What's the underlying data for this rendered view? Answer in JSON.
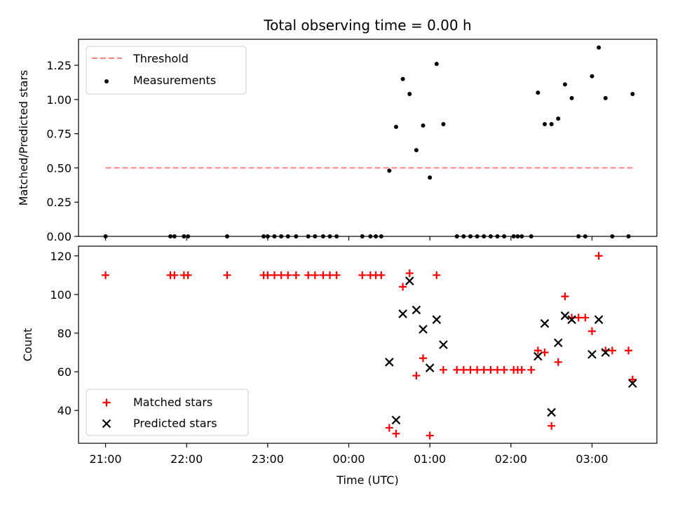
{
  "chart_data": [
    {
      "type": "line+scatter",
      "title": "Total observing time = 0.00 h",
      "xlabel": "",
      "ylabel": "Matched/Predicted stars",
      "ylim": [
        0,
        1.44
      ],
      "yticks": [
        0.0,
        0.25,
        0.5,
        0.75,
        1.0,
        1.25
      ],
      "ytick_labels": [
        "0.00",
        "0.25",
        "0.50",
        "0.75",
        "1.00",
        "1.25"
      ],
      "xlim": [
        "20:40",
        "03:48"
      ],
      "grid": false,
      "legend_position": "upper-left",
      "threshold": {
        "name": "Threshold",
        "color": "#ff7f7f",
        "style": "dashed",
        "x": [
          "21:00",
          "03:30"
        ],
        "y": [
          0.5,
          0.5
        ]
      },
      "series": [
        {
          "name": "Measurements",
          "color": "#000000",
          "marker": "dot",
          "points": [
            [
              "21:00",
              0
            ],
            [
              "21:48",
              0
            ],
            [
              "21:51",
              0
            ],
            [
              "21:58",
              0
            ],
            [
              "22:01",
              0
            ],
            [
              "22:30",
              0
            ],
            [
              "22:57",
              0
            ],
            [
              "23:00",
              0
            ],
            [
              "23:05",
              0
            ],
            [
              "23:10",
              0
            ],
            [
              "23:15",
              0
            ],
            [
              "23:21",
              0
            ],
            [
              "23:30",
              0
            ],
            [
              "23:35",
              0
            ],
            [
              "23:41",
              0
            ],
            [
              "23:46",
              0
            ],
            [
              "23:51",
              0
            ],
            [
              "00:10",
              0
            ],
            [
              "00:16",
              0
            ],
            [
              "00:20",
              0
            ],
            [
              "00:24",
              0
            ],
            [
              "00:30",
              0.48
            ],
            [
              "00:35",
              0.8
            ],
            [
              "00:40",
              1.15
            ],
            [
              "00:45",
              1.04
            ],
            [
              "00:50",
              0.63
            ],
            [
              "00:55",
              0.81
            ],
            [
              "01:00",
              0.43
            ],
            [
              "01:05",
              1.26
            ],
            [
              "01:10",
              0.82
            ],
            [
              "01:20",
              0
            ],
            [
              "01:25",
              0
            ],
            [
              "01:30",
              0
            ],
            [
              "01:35",
              0
            ],
            [
              "01:40",
              0
            ],
            [
              "01:45",
              0
            ],
            [
              "01:50",
              0
            ],
            [
              "01:55",
              0
            ],
            [
              "02:02",
              0
            ],
            [
              "02:05",
              0
            ],
            [
              "02:08",
              0
            ],
            [
              "02:15",
              0
            ],
            [
              "02:20",
              1.05
            ],
            [
              "02:25",
              0.82
            ],
            [
              "02:30",
              0.82
            ],
            [
              "02:35",
              0.86
            ],
            [
              "02:40",
              1.11
            ],
            [
              "02:45",
              1.01
            ],
            [
              "02:50",
              0
            ],
            [
              "02:55",
              0
            ],
            [
              "03:00",
              1.17
            ],
            [
              "03:05",
              1.38
            ],
            [
              "03:10",
              1.01
            ],
            [
              "03:15",
              0
            ],
            [
              "03:27",
              0
            ],
            [
              "03:30",
              1.04
            ]
          ]
        }
      ]
    },
    {
      "type": "scatter",
      "title": "",
      "xlabel": "Time (UTC)",
      "ylabel": "Count",
      "ylim": [
        23,
        125
      ],
      "yticks": [
        40,
        60,
        80,
        100,
        120
      ],
      "ytick_labels": [
        "40",
        "60",
        "80",
        "100",
        "120"
      ],
      "xlim": [
        "20:40",
        "03:48"
      ],
      "xticks": [
        "21:00",
        "22:00",
        "23:00",
        "00:00",
        "01:00",
        "02:00",
        "03:00"
      ],
      "xtick_labels": [
        "21:00",
        "22:00",
        "23:00",
        "00:00",
        "01:00",
        "02:00",
        "03:00"
      ],
      "grid": false,
      "legend_position": "lower-left",
      "series": [
        {
          "name": "Matched stars",
          "color": "#ff0000",
          "marker": "plus",
          "points": [
            [
              "21:00",
              110
            ],
            [
              "21:48",
              110
            ],
            [
              "21:51",
              110
            ],
            [
              "21:58",
              110
            ],
            [
              "22:01",
              110
            ],
            [
              "22:30",
              110
            ],
            [
              "22:57",
              110
            ],
            [
              "23:00",
              110
            ],
            [
              "23:05",
              110
            ],
            [
              "23:10",
              110
            ],
            [
              "23:15",
              110
            ],
            [
              "23:21",
              110
            ],
            [
              "23:30",
              110
            ],
            [
              "23:35",
              110
            ],
            [
              "23:41",
              110
            ],
            [
              "23:46",
              110
            ],
            [
              "23:51",
              110
            ],
            [
              "00:10",
              110
            ],
            [
              "00:16",
              110
            ],
            [
              "00:20",
              110
            ],
            [
              "00:24",
              110
            ],
            [
              "00:30",
              31
            ],
            [
              "00:35",
              28
            ],
            [
              "00:40",
              104
            ],
            [
              "00:45",
              111
            ],
            [
              "00:50",
              58
            ],
            [
              "00:55",
              67
            ],
            [
              "01:00",
              27
            ],
            [
              "01:05",
              110
            ],
            [
              "01:10",
              61
            ],
            [
              "01:20",
              61
            ],
            [
              "01:25",
              61
            ],
            [
              "01:30",
              61
            ],
            [
              "01:35",
              61
            ],
            [
              "01:40",
              61
            ],
            [
              "01:45",
              61
            ],
            [
              "01:50",
              61
            ],
            [
              "01:55",
              61
            ],
            [
              "02:02",
              61
            ],
            [
              "02:05",
              61
            ],
            [
              "02:08",
              61
            ],
            [
              "02:15",
              61
            ],
            [
              "02:20",
              71
            ],
            [
              "02:25",
              70
            ],
            [
              "02:30",
              32
            ],
            [
              "02:35",
              65
            ],
            [
              "02:40",
              99
            ],
            [
              "02:45",
              88
            ],
            [
              "02:50",
              88
            ],
            [
              "02:55",
              88
            ],
            [
              "03:00",
              81
            ],
            [
              "03:05",
              120
            ],
            [
              "03:10",
              71
            ],
            [
              "03:15",
              71
            ],
            [
              "03:27",
              71
            ],
            [
              "03:30",
              56
            ]
          ]
        },
        {
          "name": "Predicted stars",
          "color": "#000000",
          "marker": "cross",
          "points": [
            [
              "00:30",
              65
            ],
            [
              "00:35",
              35
            ],
            [
              "00:40",
              90
            ],
            [
              "00:45",
              107
            ],
            [
              "00:50",
              92
            ],
            [
              "00:55",
              82
            ],
            [
              "01:00",
              62
            ],
            [
              "01:05",
              87
            ],
            [
              "01:10",
              74
            ],
            [
              "02:20",
              68
            ],
            [
              "02:25",
              85
            ],
            [
              "02:30",
              39
            ],
            [
              "02:35",
              75
            ],
            [
              "02:40",
              89
            ],
            [
              "02:45",
              87
            ],
            [
              "03:00",
              69
            ],
            [
              "03:05",
              87
            ],
            [
              "03:10",
              70
            ],
            [
              "03:30",
              54
            ]
          ]
        }
      ]
    }
  ]
}
